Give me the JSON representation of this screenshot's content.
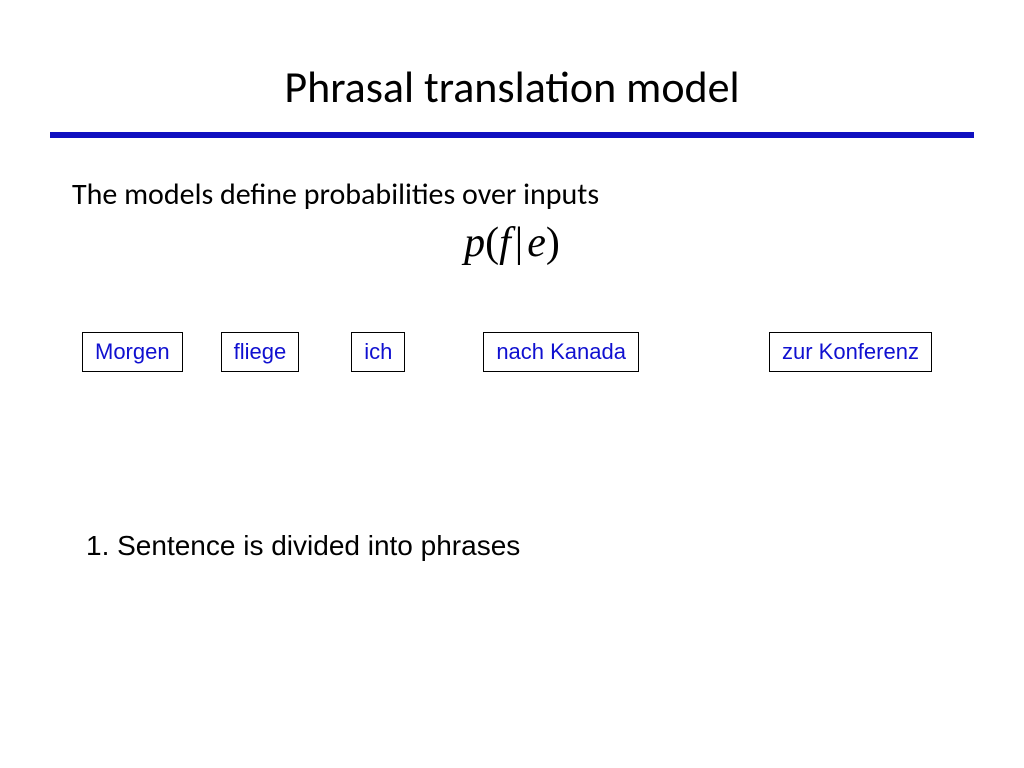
{
  "title": "Phrasal translation model",
  "subtitle": "The models define probabilities over inputs",
  "formula": {
    "p": "p",
    "open": "(",
    "f": "f",
    "bar": "|",
    "e": "e",
    "close": ")"
  },
  "phrases": [
    {
      "label": "Morgen",
      "gap_after": 38
    },
    {
      "label": "fliege",
      "gap_after": 52
    },
    {
      "label": "ich",
      "gap_after": 78
    },
    {
      "label": "nach Kanada",
      "gap_after": 130
    },
    {
      "label": "zur Konferenz",
      "gap_after": 0
    }
  ],
  "step": "1. Sentence is divided into phrases",
  "colors": {
    "rule": "#1010c0",
    "phrase_text": "#1010d0",
    "phrase_border": "#000000",
    "background": "#ffffff"
  }
}
